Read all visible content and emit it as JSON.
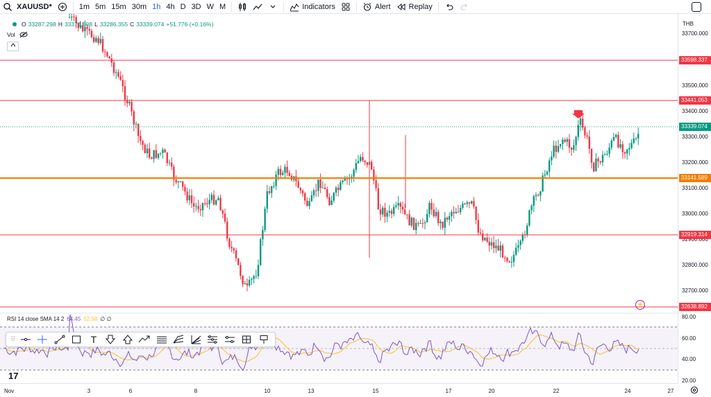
{
  "toolbar": {
    "symbol": "XAUUSD*",
    "intervals": [
      "1m",
      "5m",
      "15m",
      "30m",
      "1h",
      "4h",
      "D",
      "3D",
      "W",
      "M"
    ],
    "active_interval": "1h",
    "indicators_label": "Indicators",
    "alert_label": "Alert",
    "replay_label": "Replay"
  },
  "legend": {
    "open_label": "O",
    "open": "33287.298",
    "high_label": "H",
    "high": "33374.808",
    "low_label": "L",
    "low": "33286.355",
    "close_label": "C",
    "close": "33339.074",
    "change": "+51.776 (+0.16%)",
    "vol_label": "Vol"
  },
  "price_axis": {
    "currency": "THB",
    "ticks": [
      "33700.000",
      "33600.000",
      "33500.000",
      "33400.000",
      "33300.000",
      "33200.000",
      "33100.000",
      "33000.000",
      "32900.000",
      "32800.000",
      "32700.000"
    ],
    "tags": [
      {
        "label": "33598.337",
        "color": "#f23645"
      },
      {
        "label": "33441.053",
        "color": "#f23645"
      },
      {
        "label": "33339.074",
        "color": "#089981"
      },
      {
        "label": "33141.589",
        "color": "#f57c00"
      },
      {
        "label": "32919.314",
        "color": "#f23645"
      },
      {
        "label": "32638.892",
        "color": "#f23645"
      }
    ]
  },
  "rsi": {
    "label": "RSI 14 close SMA 14 2",
    "rsi_value": "64.45",
    "sma_value": "52.58",
    "extra": "∅ ∅",
    "ticks": [
      "80.00",
      "60.00",
      "40.00",
      "20.00"
    ]
  },
  "time_axis": {
    "labels": [
      "Nov",
      "3",
      "6",
      "8",
      "10",
      "13",
      "15",
      "17",
      "20",
      "22",
      "24",
      "27"
    ]
  },
  "drawing_tools": [
    "grip-icon",
    "horizontal-ray-icon",
    "crosshair-icon",
    "trendline-icon",
    "rectangle-icon",
    "text-icon",
    "arrow-down-icon",
    "arrow-up-icon",
    "path-icon",
    "parallel-channel-icon",
    "fib-icon",
    "pitchfork-icon",
    "gann-icon",
    "range-icon",
    "frame-icon",
    "note-icon"
  ],
  "colors": {
    "up": "#089981",
    "down": "#f23645",
    "support": "#f57c00",
    "rsi": "#7e57c2",
    "sma": "#f7c325"
  }
}
